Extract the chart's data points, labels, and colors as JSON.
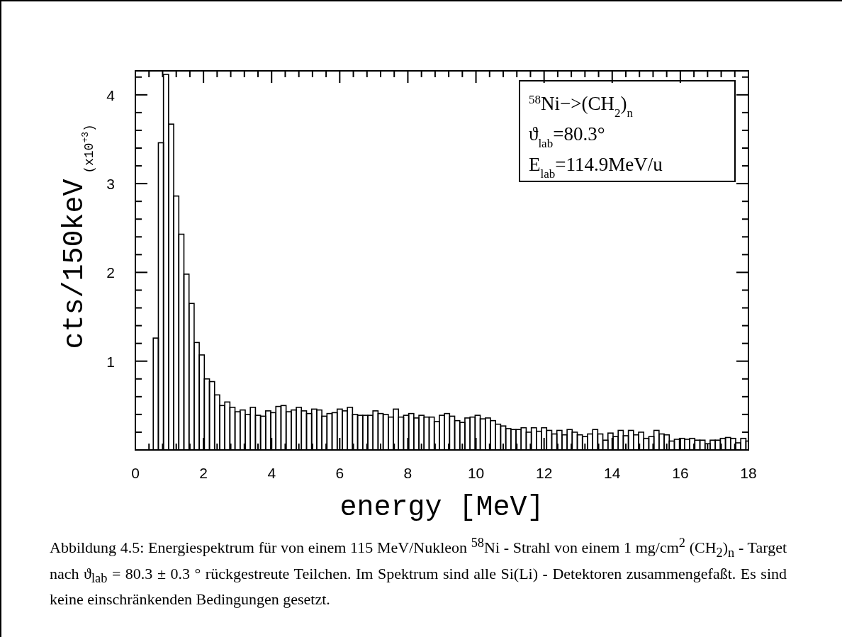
{
  "chart_data": {
    "type": "histogram",
    "xlabel": "energy [MeV]",
    "ylabel": "cts/150keV",
    "bins": [
      0.525,
      0.675,
      0.825,
      0.975,
      1.125,
      1.275,
      1.425,
      1.575,
      1.725,
      1.875,
      2.025,
      2.175,
      2.325,
      2.475,
      2.625,
      2.775,
      2.925,
      3.075,
      3.225,
      3.375,
      3.525,
      3.675,
      3.825,
      3.975,
      4.125,
      4.275,
      4.425,
      4.575,
      4.725,
      4.875,
      5.025,
      5.175,
      5.325,
      5.475,
      5.625,
      5.775,
      5.925,
      6.075,
      6.225,
      6.375,
      6.525,
      6.675,
      6.825,
      6.975,
      7.125,
      7.275,
      7.425,
      7.575,
      7.725,
      7.875,
      8.025,
      8.175,
      8.325,
      8.475,
      8.625,
      8.775,
      8.925,
      9.075,
      9.225,
      9.375,
      9.525,
      9.675,
      9.825,
      9.975,
      10.125,
      10.275,
      10.425,
      10.575,
      10.725,
      10.875,
      11.025,
      11.175,
      11.325,
      11.475,
      11.625,
      11.775,
      11.925,
      12.075,
      12.225,
      12.375,
      12.525,
      12.675,
      12.825,
      12.975,
      13.125,
      13.275,
      13.425,
      13.575,
      13.725,
      13.875,
      14.025,
      14.175,
      14.325,
      14.475,
      14.625,
      14.775,
      14.925,
      15.075,
      15.225,
      15.375,
      15.525,
      15.675,
      15.825,
      15.975,
      16.125,
      16.275,
      16.425,
      16.575,
      16.725,
      16.875,
      17.025,
      17.175,
      17.325,
      17.475,
      17.625,
      17.775,
      17.925,
      18
    ],
    "values": [
      1.26,
      3.46,
      4.23,
      3.67,
      2.86,
      2.43,
      1.98,
      1.65,
      1.21,
      1.07,
      0.8,
      0.77,
      0.62,
      0.5,
      0.54,
      0.48,
      0.43,
      0.45,
      0.4,
      0.48,
      0.39,
      0.38,
      0.44,
      0.42,
      0.49,
      0.5,
      0.43,
      0.45,
      0.48,
      0.44,
      0.41,
      0.46,
      0.45,
      0.38,
      0.41,
      0.42,
      0.46,
      0.44,
      0.48,
      0.4,
      0.39,
      0.39,
      0.39,
      0.44,
      0.41,
      0.4,
      0.37,
      0.46,
      0.37,
      0.39,
      0.41,
      0.36,
      0.39,
      0.37,
      0.37,
      0.32,
      0.39,
      0.41,
      0.38,
      0.33,
      0.31,
      0.36,
      0.37,
      0.39,
      0.35,
      0.36,
      0.33,
      0.29,
      0.27,
      0.24,
      0.23,
      0.23,
      0.25,
      0.2,
      0.25,
      0.21,
      0.25,
      0.22,
      0.18,
      0.22,
      0.17,
      0.23,
      0.2,
      0.17,
      0.15,
      0.18,
      0.23,
      0.18,
      0.11,
      0.19,
      0.15,
      0.22,
      0.16,
      0.22,
      0.17,
      0.2,
      0.13,
      0.15,
      0.22,
      0.18,
      0.17,
      0.1,
      0.12,
      0.13,
      0.12,
      0.13,
      0.11,
      0.11,
      0.07,
      0.11,
      0.11,
      0.13,
      0.14,
      0.13,
      0.08,
      0.13,
      0.1
    ],
    "color": "#000000",
    "xlim": [
      0,
      18
    ],
    "ylim": [
      0,
      4.27
    ],
    "xticks": [
      0,
      {
        "value": 0.4,
        "label": null
      },
      {
        "value": 0.8,
        "label": null
      },
      {
        "value": 1.2,
        "label": null
      },
      {
        "value": 1.6,
        "label": null
      },
      2,
      {
        "value": 2.4,
        "label": null
      },
      {
        "value": 2.8,
        "label": null
      },
      {
        "value": 3.2,
        "label": null
      },
      {
        "value": 3.6,
        "label": null
      },
      4,
      {
        "value": 4.4,
        "label": null
      },
      {
        "value": 4.8,
        "label": null
      },
      {
        "value": 5.2,
        "label": null
      },
      {
        "value": 5.6,
        "label": null
      },
      6,
      {
        "value": 6.4,
        "label": null
      },
      {
        "value": 6.8,
        "label": null
      },
      {
        "value": 7.2,
        "label": null
      },
      {
        "value": 7.6,
        "label": null
      },
      8,
      {
        "value": 8.4,
        "label": null
      },
      {
        "value": 8.8,
        "label": null
      },
      {
        "value": 9.2,
        "label": null
      },
      {
        "value": 9.6,
        "label": null
      },
      10,
      {
        "value": 10.4,
        "label": null
      },
      {
        "value": 10.8,
        "label": null
      },
      {
        "value": 11.2,
        "label": null
      },
      {
        "value": 11.6,
        "label": null
      },
      12,
      {
        "value": 12.4,
        "label": null
      },
      {
        "value": 12.8,
        "label": null
      },
      {
        "value": 13.2,
        "label": null
      },
      {
        "value": 13.6,
        "label": null
      },
      14,
      {
        "value": 14.4,
        "label": null
      },
      {
        "value": 14.8,
        "label": null
      },
      {
        "value": 15.2,
        "label": null
      },
      {
        "value": 15.6,
        "label": null
      },
      16,
      {
        "value": 16.4,
        "label": null
      },
      {
        "value": 16.8,
        "label": null
      },
      {
        "value": 17.2,
        "label": null
      },
      {
        "value": 17.6,
        "label": null
      },
      18
    ],
    "yticks": [
      {
        "value": 0.2,
        "label": null
      },
      {
        "value": 0.4,
        "label": null
      },
      {
        "value": 0.6,
        "label": null
      },
      {
        "value": 0.8,
        "label": null
      },
      1,
      {
        "value": 1.2,
        "label": null
      },
      {
        "value": 1.4,
        "label": null
      },
      {
        "value": 1.6,
        "label": null
      },
      {
        "value": 1.8,
        "label": null
      },
      2,
      {
        "value": 2.2,
        "label": null
      },
      {
        "value": 2.4,
        "label": null
      },
      {
        "value": 2.6,
        "label": null
      },
      {
        "value": 2.8,
        "label": null
      },
      3,
      {
        "value": 3.2,
        "label": null
      },
      {
        "value": 3.4,
        "label": null
      },
      {
        "value": 3.6,
        "label": null
      },
      {
        "value": 3.8,
        "label": null
      },
      4,
      {
        "value": 4.2,
        "label": null
      }
    ],
    "grid": false,
    "annotations": [
      "(x10$^{+3}$)",
      "$^{58}$Ni−>(CH$_{2}$)$_{n}$",
      "ϑ$_{lab}$=80.3°",
      "E$_{lab}$=114.9MeV/u",
      "Abbildung 4.5: Energiespektrum für von einem 115 MeV/Nukleon $^{58}$Ni - Strahl von einem 1 mg/cm$^{2}$ (CH$_{2}$)$_{n}$ - Target nach ϑ$_{lab}$ = 80.3 ± 0.3 ° rückgestreute Teilchen. Im Spektrum sind alle Si(Li) - Detektoren zusammengefaßt. Es sind keine einschränkenden Bedingungen gesetzt."
    ]
  }
}
